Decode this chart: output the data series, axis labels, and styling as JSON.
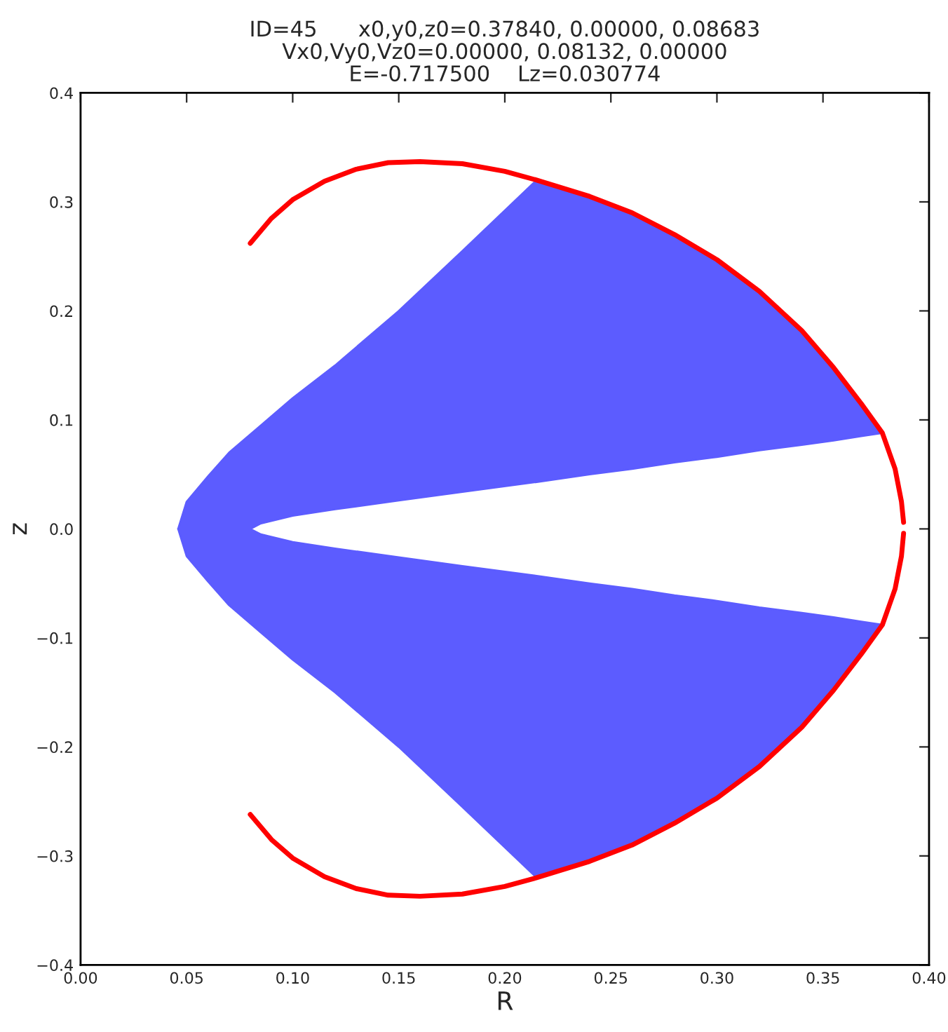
{
  "chart_data": {
    "type": "line",
    "title": "ID=45      x0,y0,z0=0.37840, 0.00000, 0.08683\nVx0,Vy0,Vz0=0.00000, 0.08132, 0.00000\nE=-0.717500    Lz=0.030774",
    "xlabel": "R",
    "ylabel": "z",
    "xlim": [
      0.0,
      0.4
    ],
    "ylim": [
      -0.4,
      0.4
    ],
    "xticks": [
      {
        "value": 0.0,
        "label": "0.00"
      },
      {
        "value": 0.05,
        "label": "0.05"
      },
      {
        "value": 0.1,
        "label": "0.10"
      },
      {
        "value": 0.15,
        "label": "0.15"
      },
      {
        "value": 0.2,
        "label": "0.20"
      },
      {
        "value": 0.25,
        "label": "0.25"
      },
      {
        "value": 0.3,
        "label": "0.30"
      },
      {
        "value": 0.35,
        "label": "0.35"
      },
      {
        "value": 0.4,
        "label": "0.40"
      }
    ],
    "yticks": [
      {
        "value": -0.4,
        "label": "−0.4"
      },
      {
        "value": -0.3,
        "label": "−0.3"
      },
      {
        "value": -0.2,
        "label": "−0.2"
      },
      {
        "value": -0.1,
        "label": "−0.1"
      },
      {
        "value": 0.0,
        "label": "0.0"
      },
      {
        "value": 0.1,
        "label": "0.1"
      },
      {
        "value": 0.2,
        "label": "0.2"
      },
      {
        "value": 0.3,
        "label": "0.3"
      },
      {
        "value": 0.4,
        "label": "0.4"
      }
    ],
    "grid": false,
    "marker": "none",
    "line_style": "solid",
    "series": [
      {
        "type": "area",
        "color": "#5c5cff",
        "x": [
          0.046,
          0.05,
          0.06,
          0.07,
          0.085,
          0.1,
          0.12,
          0.15,
          0.18,
          0.215,
          0.24,
          0.26,
          0.28,
          0.3,
          0.32,
          0.34,
          0.355,
          0.368,
          0.378,
          0.368,
          0.355,
          0.34,
          0.32,
          0.3,
          0.28,
          0.26,
          0.24,
          0.215,
          0.18,
          0.15,
          0.12,
          0.1,
          0.085,
          0.08
        ],
        "values": [
          0.0,
          0.025,
          0.048,
          0.07,
          0.095,
          0.12,
          0.15,
          0.2,
          0.255,
          0.32,
          0.305,
          0.29,
          0.27,
          0.247,
          0.218,
          0.182,
          0.148,
          0.115,
          0.088,
          0.085,
          0.081,
          0.077,
          0.072,
          0.066,
          0.061,
          0.055,
          0.05,
          0.043,
          0.034,
          0.026,
          0.018,
          0.012,
          0.005,
          0.0
        ]
      },
      {
        "type": "area",
        "color": "#5c5cff",
        "x": [
          0.046,
          0.05,
          0.06,
          0.07,
          0.085,
          0.1,
          0.12,
          0.15,
          0.18,
          0.215,
          0.24,
          0.26,
          0.28,
          0.3,
          0.32,
          0.34,
          0.355,
          0.368,
          0.378,
          0.368,
          0.355,
          0.34,
          0.32,
          0.3,
          0.28,
          0.26,
          0.24,
          0.215,
          0.18,
          0.15,
          0.12,
          0.1,
          0.085,
          0.08
        ],
        "values": [
          0.0,
          -0.025,
          -0.048,
          -0.07,
          -0.095,
          -0.12,
          -0.15,
          -0.2,
          -0.255,
          -0.32,
          -0.305,
          -0.29,
          -0.27,
          -0.247,
          -0.218,
          -0.182,
          -0.148,
          -0.115,
          -0.088,
          -0.085,
          -0.081,
          -0.077,
          -0.072,
          -0.066,
          -0.061,
          -0.055,
          -0.05,
          -0.043,
          -0.034,
          -0.026,
          -0.018,
          -0.012,
          -0.005,
          0.0
        ]
      },
      {
        "color": "#ff0000",
        "x": [
          0.08,
          0.09,
          0.1,
          0.115,
          0.13,
          0.145,
          0.16,
          0.18,
          0.2,
          0.215,
          0.24,
          0.26,
          0.28,
          0.3,
          0.32,
          0.34,
          0.355,
          0.368,
          0.378,
          0.384,
          0.387,
          0.388,
          null,
          0.388,
          0.387,
          0.384,
          0.378,
          0.368,
          0.355,
          0.34,
          0.32,
          0.3,
          0.28,
          0.26,
          0.24,
          0.215,
          0.2,
          0.18,
          0.16,
          0.145,
          0.13,
          0.115,
          0.1,
          0.09,
          0.08
        ],
        "values": [
          0.262,
          0.285,
          0.302,
          0.319,
          0.33,
          0.336,
          0.337,
          0.335,
          0.328,
          0.32,
          0.305,
          0.29,
          0.27,
          0.247,
          0.218,
          0.182,
          0.148,
          0.115,
          0.088,
          0.055,
          0.025,
          0.006,
          null,
          -0.004,
          -0.025,
          -0.055,
          -0.088,
          -0.115,
          -0.148,
          -0.182,
          -0.218,
          -0.247,
          -0.27,
          -0.29,
          -0.305,
          -0.32,
          -0.328,
          -0.335,
          -0.337,
          -0.336,
          -0.33,
          -0.319,
          -0.302,
          -0.285,
          -0.262
        ]
      }
    ]
  }
}
